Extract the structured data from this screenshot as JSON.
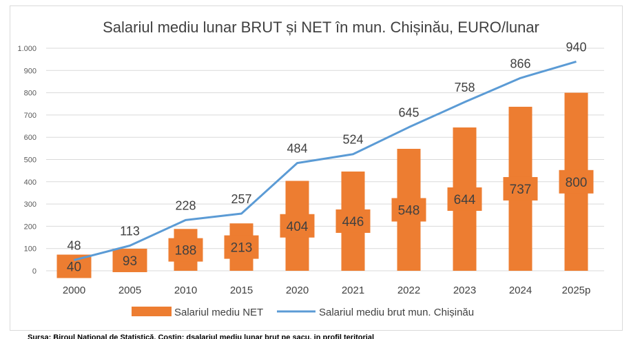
{
  "chart_data": {
    "type": "bar+line",
    "title": "Salariul mediu lunar BRUT și NET în mun. Chișinău, EURO/lunar",
    "categories": [
      "2000",
      "2005",
      "2010",
      "2015",
      "2020",
      "2021",
      "2022",
      "2023",
      "2024",
      "2025p"
    ],
    "series": [
      {
        "name": "Salariul mediu NET",
        "kind": "bar",
        "values": [
          40,
          93,
          188,
          213,
          404,
          446,
          548,
          644,
          737,
          800
        ],
        "labels": [
          "40",
          "93",
          "188",
          "213",
          "404",
          "446",
          "548",
          "644",
          "737",
          "800"
        ],
        "color": "#ed7d31"
      },
      {
        "name": "Salariul mediu brut mun. Chișinău",
        "kind": "line",
        "values": [
          48,
          113,
          228,
          257,
          484,
          524,
          645,
          758,
          866,
          940
        ],
        "labels": [
          "48",
          "113",
          "228",
          "257",
          "484",
          "524",
          "645",
          "758",
          "866",
          "940"
        ],
        "color": "#5b9bd5"
      }
    ],
    "ylim": [
      0,
      1000
    ],
    "yticks": [
      0,
      100,
      200,
      300,
      400,
      500,
      600,
      700,
      800,
      900,
      1000
    ],
    "ytick_labels": [
      "0",
      "100",
      "200",
      "300",
      "400",
      "500",
      "600",
      "700",
      "800",
      "900",
      "1.000"
    ],
    "grid": true,
    "legend_position": "bottom"
  },
  "source_note": "Sursa: Biroul Național de Statistică. Costin: dsalariul mediu lunar brut pe sacu, in profil teritorial"
}
